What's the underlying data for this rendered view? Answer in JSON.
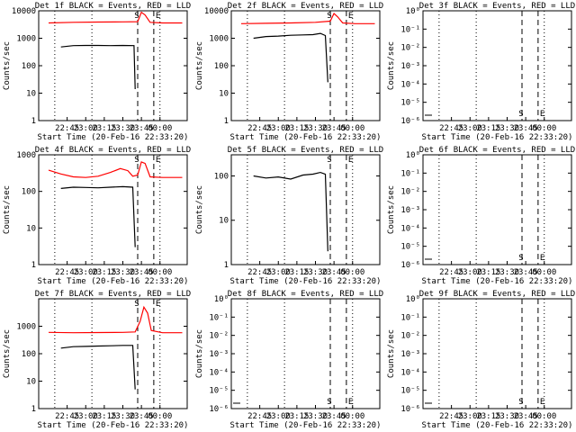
{
  "chart_data": [
    {
      "title": "Det 1f BLACK = Events, RED = LLD",
      "type": "line",
      "scale": "log",
      "ylabel": "Counts/sec",
      "xlabel": "Start Time (20-Feb-16 22:33:20)",
      "xticks": [
        "22:45",
        "23:00",
        "23:15",
        "23:30",
        "23:45",
        "00:00"
      ],
      "yticks": [
        "1",
        "10",
        "100",
        "1000",
        "10000"
      ],
      "ylim": [
        1,
        10000
      ],
      "markers": [
        "S",
        "E"
      ],
      "black": [
        [
          22.5,
          480
        ],
        [
          23.0,
          540
        ],
        [
          23.5,
          545
        ],
        [
          24.0,
          545
        ],
        [
          24.5,
          540
        ],
        [
          25.0,
          545
        ],
        [
          25.45,
          540
        ],
        [
          25.5,
          14
        ]
      ],
      "red": [
        [
          22.0,
          3600
        ],
        [
          23.0,
          3800
        ],
        [
          24.0,
          3900
        ],
        [
          25.0,
          3950
        ],
        [
          25.6,
          4000
        ],
        [
          25.75,
          8800
        ],
        [
          25.9,
          7000
        ],
        [
          26.1,
          3800
        ],
        [
          26.6,
          3600
        ],
        [
          27.4,
          3600
        ]
      ]
    },
    {
      "title": "Det 2f BLACK = Events, RED = LLD",
      "type": "line",
      "scale": "log",
      "ylabel": "Counts/sec",
      "xlabel": "Start Time (20-Feb-16 22:33:20)",
      "xticks": [
        "22:45",
        "23:00",
        "23:15",
        "23:30",
        "23:45",
        "00:00"
      ],
      "yticks": [
        "1",
        "10",
        "100",
        "1000",
        "10000"
      ],
      "ylim": [
        1,
        10000
      ],
      "markers": [
        "S",
        "E"
      ],
      "black": [
        [
          22.5,
          1000
        ],
        [
          23.0,
          1150
        ],
        [
          23.5,
          1200
        ],
        [
          24.0,
          1280
        ],
        [
          24.5,
          1320
        ],
        [
          24.9,
          1350
        ],
        [
          25.2,
          1500
        ],
        [
          25.4,
          1250
        ],
        [
          25.5,
          25
        ]
      ],
      "red": [
        [
          22.0,
          3400
        ],
        [
          23.0,
          3500
        ],
        [
          24.0,
          3600
        ],
        [
          25.0,
          3800
        ],
        [
          25.6,
          4200
        ],
        [
          25.75,
          8000
        ],
        [
          25.9,
          6000
        ],
        [
          26.1,
          3600
        ],
        [
          26.6,
          3400
        ],
        [
          27.4,
          3400
        ]
      ]
    },
    {
      "title": "Det 3f BLACK = Events, RED = LLD",
      "type": "line",
      "scale": "log",
      "ylabel": "Counts/sec",
      "xlabel": "Start Time (20-Feb-16 22:33:20)",
      "xticks": [
        "22:45",
        "23:00",
        "23:15",
        "23:30",
        "23:45",
        "00:00"
      ],
      "yticks": [
        "10⁰",
        "10⁻¹",
        "10⁻²",
        "10⁻³",
        "10⁻⁴",
        "10⁻⁵",
        "10⁻⁶"
      ],
      "ylim": [
        1e-06,
        1
      ],
      "markers": [
        "S",
        "E"
      ],
      "black": [],
      "red": []
    },
    {
      "title": "Det 4f BLACK = Events, RED = LLD",
      "type": "line",
      "scale": "log",
      "ylabel": "Counts/sec",
      "xlabel": "Start Time (20-Feb-16 22:33:20)",
      "xticks": [
        "22:45",
        "23:00",
        "23:15",
        "23:30",
        "23:45",
        "00:00"
      ],
      "yticks": [
        "1",
        "10",
        "100",
        "1000"
      ],
      "ylim": [
        1,
        1000
      ],
      "markers": [
        "S",
        "E"
      ],
      "black": [
        [
          22.5,
          120
        ],
        [
          23.0,
          130
        ],
        [
          23.5,
          128
        ],
        [
          24.0,
          125
        ],
        [
          24.5,
          130
        ],
        [
          25.0,
          135
        ],
        [
          25.4,
          130
        ],
        [
          25.5,
          3
        ]
      ],
      "red": [
        [
          22.0,
          380
        ],
        [
          22.5,
          300
        ],
        [
          23.0,
          250
        ],
        [
          23.5,
          240
        ],
        [
          24.0,
          260
        ],
        [
          24.5,
          330
        ],
        [
          24.9,
          420
        ],
        [
          25.2,
          370
        ],
        [
          25.4,
          260
        ],
        [
          25.6,
          280
        ],
        [
          25.75,
          640
        ],
        [
          25.9,
          580
        ],
        [
          26.1,
          250
        ],
        [
          26.6,
          240
        ],
        [
          27.4,
          240
        ]
      ]
    },
    {
      "title": "Det 5f BLACK = Events, RED = LLD",
      "type": "line",
      "scale": "log",
      "ylabel": "Counts/sec",
      "xlabel": "Start Time (20-Feb-16 22:33:20)",
      "xticks": [
        "22:45",
        "23:00",
        "23:15",
        "23:30",
        "23:45",
        "00:00"
      ],
      "yticks": [
        "1",
        "10",
        "100"
      ],
      "ylim": [
        1,
        300
      ],
      "markers": [
        "S",
        "E"
      ],
      "black": [
        [
          22.5,
          100
        ],
        [
          23.0,
          90
        ],
        [
          23.5,
          95
        ],
        [
          24.0,
          85
        ],
        [
          24.5,
          105
        ],
        [
          24.9,
          110
        ],
        [
          25.2,
          120
        ],
        [
          25.4,
          110
        ],
        [
          25.5,
          2
        ]
      ],
      "red": []
    },
    {
      "title": "Det 6f BLACK = Events, RED = LLD",
      "type": "line",
      "scale": "log",
      "ylabel": "Counts/sec",
      "xlabel": "Start Time (20-Feb-16 22:33:20)",
      "xticks": [
        "22:45",
        "23:00",
        "23:15",
        "23:30",
        "23:45",
        "00:00"
      ],
      "yticks": [
        "10⁰",
        "10⁻¹",
        "10⁻²",
        "10⁻³",
        "10⁻⁴",
        "10⁻⁵",
        "10⁻⁶"
      ],
      "ylim": [
        1e-06,
        1
      ],
      "markers": [
        "S",
        "E"
      ],
      "black": [],
      "red": []
    },
    {
      "title": "Det 7f BLACK = Events, RED = LLD",
      "type": "line",
      "scale": "log",
      "ylabel": "Counts/sec",
      "xlabel": "Start Time (20-Feb-16 22:33:20)",
      "xticks": [
        "22:45",
        "23:00",
        "23:15",
        "23:30",
        "23:45",
        "00:00"
      ],
      "yticks": [
        "1",
        "10",
        "100",
        "1000"
      ],
      "ylim": [
        1,
        10000
      ],
      "markers": [
        "S",
        "E"
      ],
      "black": [
        [
          22.5,
          160
        ],
        [
          23.0,
          180
        ],
        [
          23.5,
          185
        ],
        [
          24.0,
          190
        ],
        [
          24.5,
          195
        ],
        [
          25.0,
          200
        ],
        [
          25.4,
          200
        ],
        [
          25.5,
          5
        ]
      ],
      "red": [
        [
          22.0,
          600
        ],
        [
          23.0,
          580
        ],
        [
          24.0,
          590
        ],
        [
          25.0,
          600
        ],
        [
          25.5,
          620
        ],
        [
          25.7,
          1500
        ],
        [
          25.85,
          5000
        ],
        [
          26.0,
          3000
        ],
        [
          26.15,
          700
        ],
        [
          26.6,
          580
        ],
        [
          27.4,
          580
        ]
      ]
    },
    {
      "title": "Det 8f BLACK = Events, RED = LLD",
      "type": "line",
      "scale": "log",
      "ylabel": "Counts/sec",
      "xlabel": "Start Time (20-Feb-16 22:33:20)",
      "xticks": [
        "22:45",
        "23:00",
        "23:15",
        "23:30",
        "23:45",
        "00:00"
      ],
      "yticks": [
        "10⁰",
        "10⁻¹",
        "10⁻²",
        "10⁻³",
        "10⁻⁴",
        "10⁻⁵",
        "10⁻⁶"
      ],
      "ylim": [
        1e-06,
        1
      ],
      "markers": [
        "S",
        "E"
      ],
      "black": [],
      "red": []
    },
    {
      "title": "Det 9f BLACK = Events, RED = LLD",
      "type": "line",
      "scale": "log",
      "ylabel": "Counts/sec",
      "xlabel": "Start Time (20-Feb-16 22:33:20)",
      "xticks": [
        "22:45",
        "23:00",
        "23:15",
        "23:30",
        "23:45",
        "00:00"
      ],
      "yticks": [
        "10⁰",
        "10⁻¹",
        "10⁻²",
        "10⁻³",
        "10⁻⁴",
        "10⁻⁵",
        "10⁻⁶"
      ],
      "ylim": [
        1e-06,
        1
      ],
      "markers": [
        "S",
        "E"
      ],
      "black": [],
      "red": []
    }
  ],
  "colors": {
    "events": "#000000",
    "lld": "#ff0000",
    "background": "#ffffff"
  }
}
